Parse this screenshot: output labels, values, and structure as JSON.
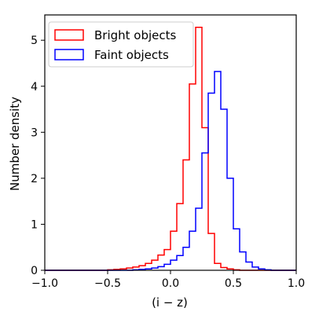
{
  "chart_data": {
    "type": "histogram",
    "xlabel": "(i − z)",
    "ylabel": "Number density",
    "xlim": [
      -1.0,
      1.0
    ],
    "ylim": [
      0,
      5.55
    ],
    "x_ticks": [
      "−1.0",
      "−0.5",
      "0.0",
      "0.5",
      "1.0"
    ],
    "x_tick_values": [
      -1.0,
      -0.5,
      0.0,
      0.5,
      1.0
    ],
    "y_ticks": [
      "0",
      "1",
      "2",
      "3",
      "4",
      "5"
    ],
    "y_tick_values": [
      0,
      1,
      2,
      3,
      4,
      5
    ],
    "grid": false,
    "legend_position": "upper-left",
    "bin_edges": [
      -1.0,
      -0.95,
      -0.9,
      -0.85,
      -0.8,
      -0.75,
      -0.7,
      -0.65,
      -0.6,
      -0.55,
      -0.5,
      -0.45,
      -0.4,
      -0.35,
      -0.3,
      -0.25,
      -0.2,
      -0.15,
      -0.1,
      -0.05,
      0.0,
      0.05,
      0.1,
      0.15,
      0.2,
      0.25,
      0.3,
      0.35,
      0.4,
      0.45,
      0.5,
      0.55,
      0.6,
      0.65,
      0.7,
      0.75,
      0.8,
      0.85,
      0.9,
      0.95,
      1.0
    ],
    "series": [
      {
        "name": "Bright objects",
        "color": "#ff0000",
        "values": [
          0,
          0,
          0,
          0,
          0,
          0,
          0,
          0,
          0,
          0,
          0.01,
          0.02,
          0.03,
          0.05,
          0.07,
          0.1,
          0.15,
          0.22,
          0.33,
          0.45,
          0.85,
          1.45,
          2.4,
          4.05,
          5.28,
          3.1,
          0.8,
          0.15,
          0.06,
          0.03,
          0.01,
          0,
          0,
          0,
          0,
          0,
          0,
          0,
          0,
          0
        ]
      },
      {
        "name": "Faint objects",
        "color": "#0000ff",
        "values": [
          0,
          0,
          0,
          0,
          0,
          0,
          0,
          0,
          0,
          0,
          0,
          0,
          0,
          0,
          0.01,
          0.02,
          0.03,
          0.05,
          0.08,
          0.13,
          0.22,
          0.32,
          0.5,
          0.85,
          1.35,
          2.55,
          3.85,
          4.32,
          3.5,
          2.0,
          0.9,
          0.4,
          0.18,
          0.07,
          0.03,
          0.01,
          0,
          0,
          0,
          0
        ]
      }
    ]
  }
}
